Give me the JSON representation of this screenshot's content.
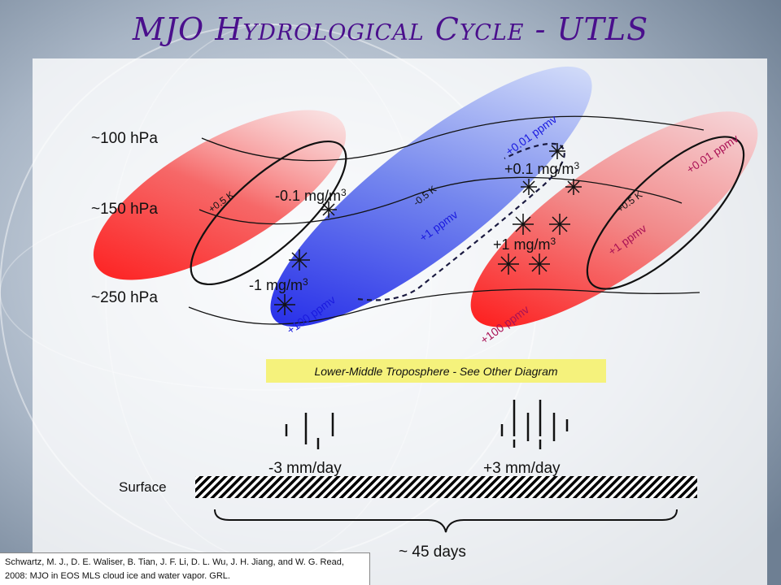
{
  "title": "MJO Hydrological Cycle - UTLS",
  "pressure_levels": [
    "~100 hPa",
    "~150 hPa",
    "~250 hPa"
  ],
  "left_red": {
    "temp": "+0.5 K",
    "ice_upper": "-0.1 mg/m",
    "ice_lower": "-1 mg/m",
    "superscript": "3"
  },
  "blue": {
    "temp": "-0.5 K",
    "vapor_top": "+0.01 ppmv",
    "vapor_mid": "+1 ppmv",
    "vapor_low": "+100 ppmv"
  },
  "right_center": {
    "ice_upper": "+0.1 mg/m",
    "ice_lower": "+1 mg/m",
    "superscript": "3"
  },
  "right_red": {
    "temp": "+0.5 K",
    "vapor_top": "+0.01 ppmv",
    "vapor_mid": "+1 ppmv",
    "vapor_low": "+100 ppmv"
  },
  "banner": "Lower-Middle Troposphere - See Other Diagram",
  "rain_left": "-3 mm/day",
  "rain_right": "+3 mm/day",
  "surface": "Surface",
  "period": "~ 45 days",
  "citation": "Schwartz, M. J., D. E. Waliser, B. Tian, J. F. Li, D. L. Wu, J. H. Jiang, and W. G. Read, 2008: MJO in EOS MLS cloud ice and water vapor. GRL.",
  "colors": {
    "title": "#4a0f8c",
    "red": "#ee1111",
    "blue": "#2222ee",
    "vapor_blue": "#1a1adf",
    "vapor_red": "#aa1155",
    "banner": "#f5f27c"
  }
}
